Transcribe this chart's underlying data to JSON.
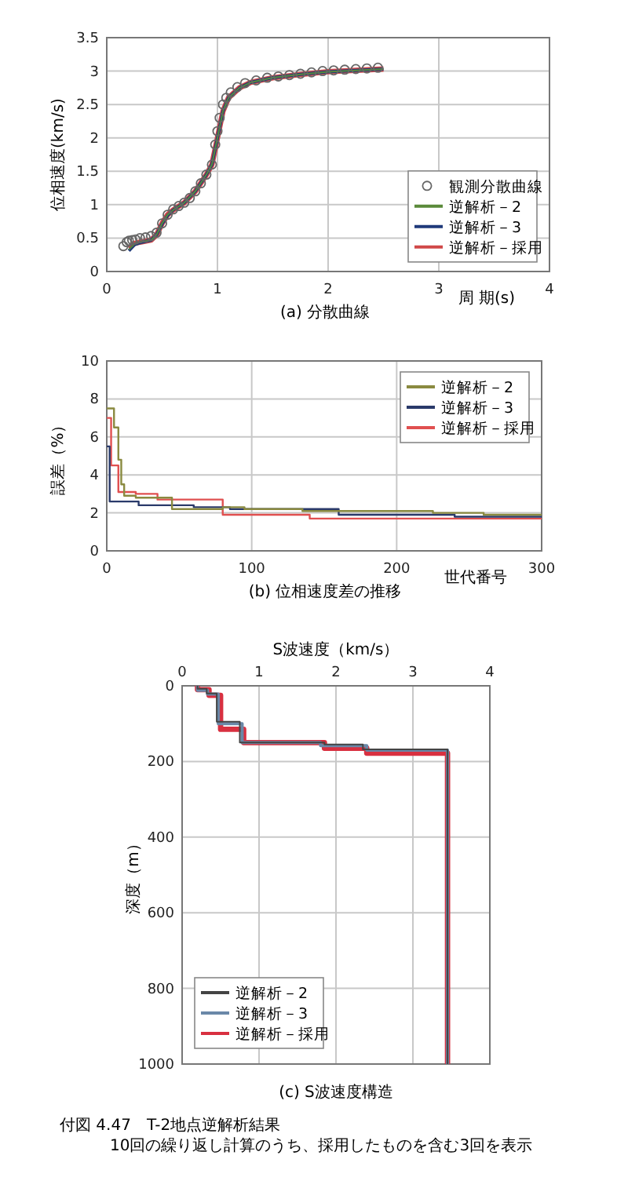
{
  "chart_data": [
    {
      "type": "line",
      "title": "(a) 分散曲線",
      "xlabel": "周 期(s)",
      "ylabel": "位相速度(km/s)",
      "xlim": [
        0,
        4
      ],
      "ylim": [
        0,
        3.5
      ],
      "xticks": [
        0,
        1,
        2,
        3,
        4
      ],
      "yticks": [
        0,
        0.5,
        1,
        1.5,
        2,
        2.5,
        3,
        3.5
      ],
      "grid": true,
      "legend": "bottom right",
      "series": [
        {
          "name": "観測分散曲線",
          "type": "scatter",
          "marker": "circle",
          "color": "#666666",
          "x": [
            0.15,
            0.18,
            0.2,
            0.23,
            0.26,
            0.3,
            0.35,
            0.4,
            0.45,
            0.5,
            0.55,
            0.6,
            0.65,
            0.7,
            0.75,
            0.8,
            0.85,
            0.9,
            0.95,
            0.98,
            1.0,
            1.02,
            1.05,
            1.08,
            1.12,
            1.18,
            1.25,
            1.35,
            1.45,
            1.55,
            1.65,
            1.75,
            1.85,
            1.95,
            2.05,
            2.15,
            2.25,
            2.35,
            2.45
          ],
          "values": [
            0.38,
            0.44,
            0.46,
            0.47,
            0.48,
            0.5,
            0.51,
            0.53,
            0.58,
            0.72,
            0.85,
            0.93,
            0.98,
            1.03,
            1.1,
            1.2,
            1.32,
            1.45,
            1.6,
            1.9,
            2.1,
            2.3,
            2.5,
            2.6,
            2.68,
            2.76,
            2.82,
            2.86,
            2.9,
            2.92,
            2.94,
            2.96,
            2.98,
            3.0,
            3.01,
            3.02,
            3.03,
            3.04,
            3.05
          ]
        },
        {
          "name": "逆解析－2",
          "color": "#5a8a3a",
          "x": [
            0.2,
            0.25,
            0.3,
            0.4,
            0.45,
            0.5,
            0.55,
            0.6,
            0.7,
            0.8,
            0.9,
            0.95,
            1.0,
            1.05,
            1.1,
            1.2,
            1.3,
            1.5,
            1.75,
            2.0,
            2.25,
            2.5
          ],
          "values": [
            0.33,
            0.41,
            0.44,
            0.47,
            0.55,
            0.72,
            0.85,
            0.92,
            1.03,
            1.2,
            1.45,
            1.6,
            2.0,
            2.4,
            2.6,
            2.75,
            2.83,
            2.9,
            2.95,
            2.99,
            3.01,
            3.03
          ]
        },
        {
          "name": "逆解析－3",
          "color": "#1f3a7a",
          "x": [
            0.2,
            0.25,
            0.3,
            0.4,
            0.45,
            0.5,
            0.55,
            0.6,
            0.7,
            0.8,
            0.9,
            0.95,
            1.0,
            1.05,
            1.1,
            1.2,
            1.3,
            1.5,
            1.75,
            2.0,
            2.25,
            2.5
          ],
          "values": [
            0.31,
            0.4,
            0.43,
            0.47,
            0.55,
            0.71,
            0.84,
            0.92,
            1.03,
            1.2,
            1.45,
            1.6,
            2.0,
            2.4,
            2.6,
            2.75,
            2.83,
            2.9,
            2.95,
            2.99,
            3.01,
            3.03
          ]
        },
        {
          "name": "逆解析－採用",
          "color": "#d04848",
          "x": [
            0.2,
            0.25,
            0.3,
            0.4,
            0.45,
            0.5,
            0.55,
            0.6,
            0.7,
            0.8,
            0.9,
            0.95,
            1.0,
            1.05,
            1.1,
            1.2,
            1.3,
            1.5,
            1.75,
            2.0,
            2.25,
            2.5
          ],
          "values": [
            0.35,
            0.42,
            0.44,
            0.47,
            0.55,
            0.72,
            0.85,
            0.92,
            1.03,
            1.2,
            1.45,
            1.6,
            2.0,
            2.4,
            2.6,
            2.75,
            2.83,
            2.9,
            2.95,
            2.99,
            3.01,
            3.03
          ]
        }
      ]
    },
    {
      "type": "step",
      "title": "(b) 位相速度差の推移",
      "xlabel": "世代番号",
      "ylabel": "誤差（%）",
      "xlim": [
        0,
        300
      ],
      "ylim": [
        0,
        10
      ],
      "xticks": [
        0,
        100,
        200,
        300
      ],
      "yticks": [
        0,
        2,
        4,
        6,
        8,
        10
      ],
      "grid": true,
      "legend": "top right",
      "series": [
        {
          "name": "逆解析－2",
          "color": "#8a8a40",
          "x": [
            0,
            3,
            5,
            8,
            10,
            12,
            20,
            45,
            80,
            95,
            135,
            160,
            225,
            260,
            300
          ],
          "values": [
            7.5,
            7.5,
            6.5,
            4.8,
            3.5,
            2.9,
            2.8,
            2.2,
            2.3,
            2.2,
            2.1,
            2.1,
            2.0,
            1.9,
            1.9
          ]
        },
        {
          "name": "逆解析－3",
          "color": "#2a3a6a",
          "x": [
            0,
            2,
            22,
            60,
            85,
            160,
            240,
            300
          ],
          "values": [
            5.5,
            2.6,
            2.4,
            2.3,
            2.2,
            1.9,
            1.8,
            1.8
          ]
        },
        {
          "name": "逆解析－採用",
          "color": "#e05050",
          "x": [
            0,
            3,
            8,
            20,
            35,
            80,
            140,
            300
          ],
          "values": [
            7.0,
            4.5,
            3.1,
            3.0,
            2.7,
            1.9,
            1.7,
            1.7
          ]
        }
      ]
    },
    {
      "type": "line",
      "title": "(c) S波速度構造",
      "xlabel": "S波速度（km/s）",
      "ylabel": "深度（m）",
      "xlim": [
        0,
        4
      ],
      "ylim": [
        1000,
        0
      ],
      "xticks": [
        0,
        1,
        2,
        3,
        4
      ],
      "yticks": [
        0,
        200,
        400,
        600,
        800,
        1000
      ],
      "grid": true,
      "legend": "bottom left",
      "annotations": [
        "付図 4.47　T-2地点逆解析結果",
        "10回の繰り返し計算のうち、採用したものを含む3回を表示"
      ],
      "series": [
        {
          "name": "逆解析－2",
          "color": "#444444",
          "x": [
            0.2,
            0.2,
            0.32,
            0.32,
            0.45,
            0.45,
            0.75,
            0.75,
            1.85,
            1.85,
            2.35,
            2.35,
            3.45,
            3.45
          ],
          "values": [
            0,
            8,
            8,
            20,
            20,
            95,
            95,
            150,
            150,
            155,
            155,
            168,
            168,
            1000
          ]
        },
        {
          "name": "逆解析－3",
          "color": "#6a88a8",
          "x": [
            0.2,
            0.2,
            0.33,
            0.33,
            0.47,
            0.47,
            0.78,
            0.78,
            1.8,
            1.8,
            2.4,
            2.4,
            3.45,
            3.45
          ],
          "values": [
            0,
            12,
            12,
            22,
            22,
            100,
            100,
            150,
            150,
            158,
            158,
            170,
            170,
            1000
          ]
        },
        {
          "name": "逆解析－採用",
          "color": "#d83040",
          "x": [
            0.2,
            0.2,
            0.35,
            0.35,
            0.5,
            0.5,
            0.8,
            0.8,
            1.85,
            1.85,
            2.4,
            2.4,
            3.45,
            3.45
          ],
          "values": [
            0,
            10,
            10,
            25,
            25,
            115,
            115,
            150,
            150,
            165,
            165,
            178,
            178,
            1000
          ]
        }
      ]
    }
  ]
}
